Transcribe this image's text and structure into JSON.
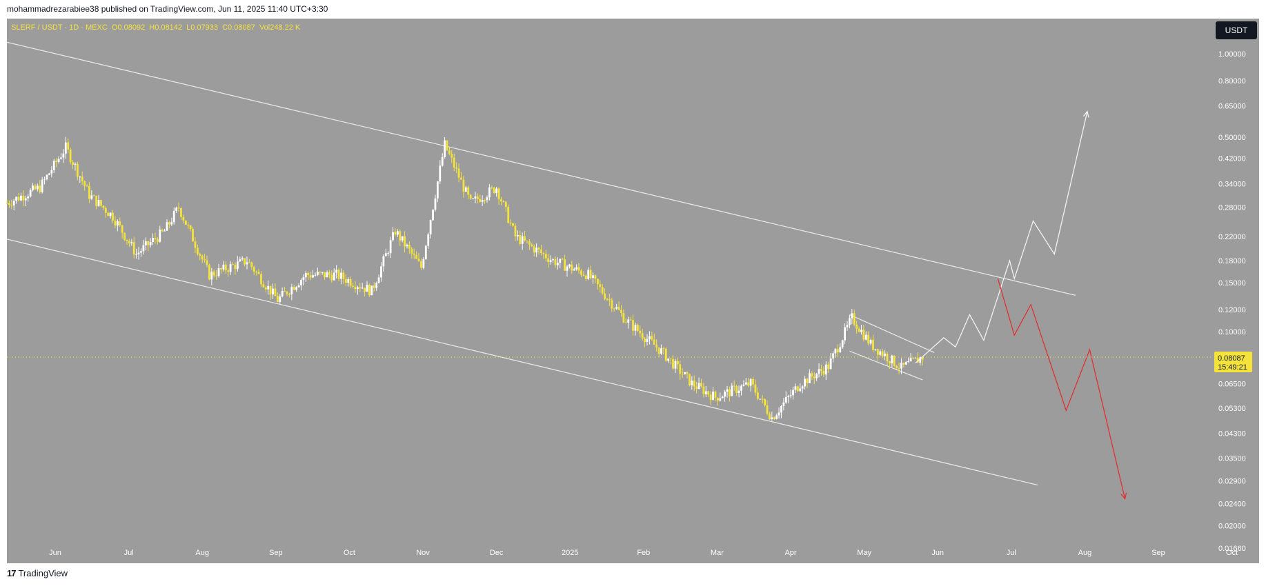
{
  "header": {
    "published_text": "mohammadrezarabiee38 published on TradingView.com, Jun 11, 2025 11:40 UTC+3:30"
  },
  "symbol_line": "SLERF / USDT · 1D · MEXC  O0.08092  H0.08142  L0.07933  C0.08087  Vol248.22 K",
  "currency": "USDT",
  "footer": {
    "logo_mark": "17",
    "brand": "TradingView"
  },
  "colors": {
    "background": "#9c9c9c",
    "candle": "#f5e33c",
    "channel": "#e6e6e6",
    "bull_path": "#f2f2f2",
    "bear_path": "#e03030",
    "price_tag": "#f5e33c"
  },
  "chart_data": {
    "type": "candlestick",
    "scale": "log",
    "ylim": [
      0.0155,
      1.2
    ],
    "price_ticks": [
      "1.00000",
      "0.80000",
      "0.65000",
      "0.50000",
      "0.42000",
      "0.34000",
      "0.28000",
      "0.22000",
      "0.18000",
      "0.15000",
      "0.12000",
      "0.10000",
      "0.06500",
      "0.05300",
      "0.04300",
      "0.03500",
      "0.02900",
      "0.02400",
      "0.02000",
      "0.01660"
    ],
    "current_price": {
      "value": "0.08087",
      "countdown": "15:49:21"
    },
    "x_ticks": [
      "Jun",
      "Jul",
      "Aug",
      "Sep",
      "Oct",
      "Nov",
      "Dec",
      "2025",
      "Feb",
      "Mar",
      "Apr",
      "May",
      "Jun",
      "Jul",
      "Aug",
      "Sep",
      "Oct"
    ],
    "x_range": [
      "2024-05-18",
      "2025-10-10"
    ],
    "last_candle_date": "2025-06-11",
    "ohlc_last": {
      "open": 0.08092,
      "high": 0.08142,
      "low": 0.07933,
      "close": 0.08087,
      "volume": "248.22 K"
    },
    "close_path": [
      [
        "2024-05-18",
        0.29
      ],
      [
        "2024-06-01",
        0.33
      ],
      [
        "2024-06-12",
        0.46
      ],
      [
        "2024-06-22",
        0.31
      ],
      [
        "2024-07-02",
        0.26
      ],
      [
        "2024-07-12",
        0.19
      ],
      [
        "2024-07-24",
        0.23
      ],
      [
        "2024-07-30",
        0.28
      ],
      [
        "2024-08-12",
        0.16
      ],
      [
        "2024-08-28",
        0.18
      ],
      [
        "2024-09-10",
        0.13
      ],
      [
        "2024-09-22",
        0.16
      ],
      [
        "2024-10-05",
        0.16
      ],
      [
        "2024-10-20",
        0.14
      ],
      [
        "2024-10-30",
        0.23
      ],
      [
        "2024-11-10",
        0.17
      ],
      [
        "2024-11-20",
        0.47
      ],
      [
        "2024-12-01",
        0.29
      ],
      [
        "2024-12-12",
        0.33
      ],
      [
        "2024-12-20",
        0.22
      ],
      [
        "2025-01-05",
        0.18
      ],
      [
        "2025-01-20",
        0.16
      ],
      [
        "2025-02-05",
        0.11
      ],
      [
        "2025-02-20",
        0.085
      ],
      [
        "2025-03-05",
        0.065
      ],
      [
        "2025-03-15",
        0.058
      ],
      [
        "2025-03-30",
        0.065
      ],
      [
        "2025-04-08",
        0.049
      ],
      [
        "2025-04-20",
        0.065
      ],
      [
        "2025-05-02",
        0.075
      ],
      [
        "2025-05-12",
        0.112
      ],
      [
        "2025-05-20",
        0.09
      ],
      [
        "2025-06-02",
        0.074
      ],
      [
        "2025-06-11",
        0.0809
      ]
    ],
    "channel_upper": [
      [
        "2024-05-18",
        1.1
      ],
      [
        "2025-08-15",
        0.135
      ]
    ],
    "channel_lower": [
      [
        "2024-05-18",
        0.215
      ],
      [
        "2025-07-30",
        0.028
      ]
    ],
    "wedge_upper": [
      [
        "2025-05-11",
        0.115
      ],
      [
        "2025-06-16",
        0.084
      ]
    ],
    "wedge_lower": [
      [
        "2025-05-11",
        0.085
      ],
      [
        "2025-06-11",
        0.067
      ]
    ],
    "bull_projection": [
      [
        "2025-06-08",
        0.077
      ],
      [
        "2025-06-20",
        0.095
      ],
      [
        "2025-06-25",
        0.088
      ],
      [
        "2025-07-01",
        0.115
      ],
      [
        "2025-07-07",
        0.093
      ],
      [
        "2025-07-18",
        0.18
      ],
      [
        "2025-07-20",
        0.155
      ],
      [
        "2025-07-28",
        0.25
      ],
      [
        "2025-08-06",
        0.19
      ],
      [
        "2025-08-20",
        0.62
      ]
    ],
    "bear_projection": [
      [
        "2025-07-13",
        0.155
      ],
      [
        "2025-07-20",
        0.097
      ],
      [
        "2025-07-27",
        0.125
      ],
      [
        "2025-08-11",
        0.052
      ],
      [
        "2025-08-21",
        0.086
      ],
      [
        "2025-09-05",
        0.025
      ]
    ]
  }
}
